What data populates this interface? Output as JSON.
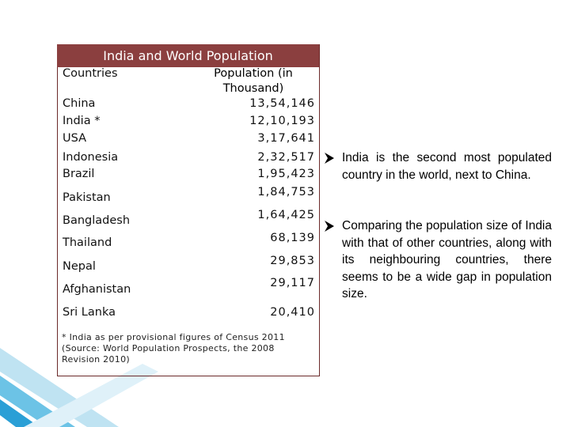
{
  "table": {
    "title": "India and World Population",
    "header": [
      "Countries",
      "Population (in Thousand)"
    ],
    "rows": [
      [
        "China",
        "13,54,146"
      ],
      [
        "India *",
        "12,10,193"
      ],
      [
        "USA",
        "3,17,641"
      ],
      [
        "Indonesia",
        "2,32,517"
      ],
      [
        "Brazil",
        "1,95,423"
      ],
      [
        "Pakistan",
        "1,84,753"
      ],
      [
        "Bangladesh",
        "1,64,425"
      ],
      [
        "Thailand",
        "68,139"
      ],
      [
        "Nepal",
        "29,853"
      ],
      [
        "Afghanistan",
        "29,117"
      ],
      [
        "Sri Lanka",
        "20,410"
      ]
    ],
    "notes": [
      "* India as per provisional figures of Census 2011",
      "(Source: World Population Prospects, the 2008 Revision 2010)"
    ]
  },
  "bullets": [
    "India is the second most populated country in the world, next to China.",
    "Comparing the population size of India with that of other countries, along with its neighbouring countries, there seems to be a wide gap in population size."
  ]
}
